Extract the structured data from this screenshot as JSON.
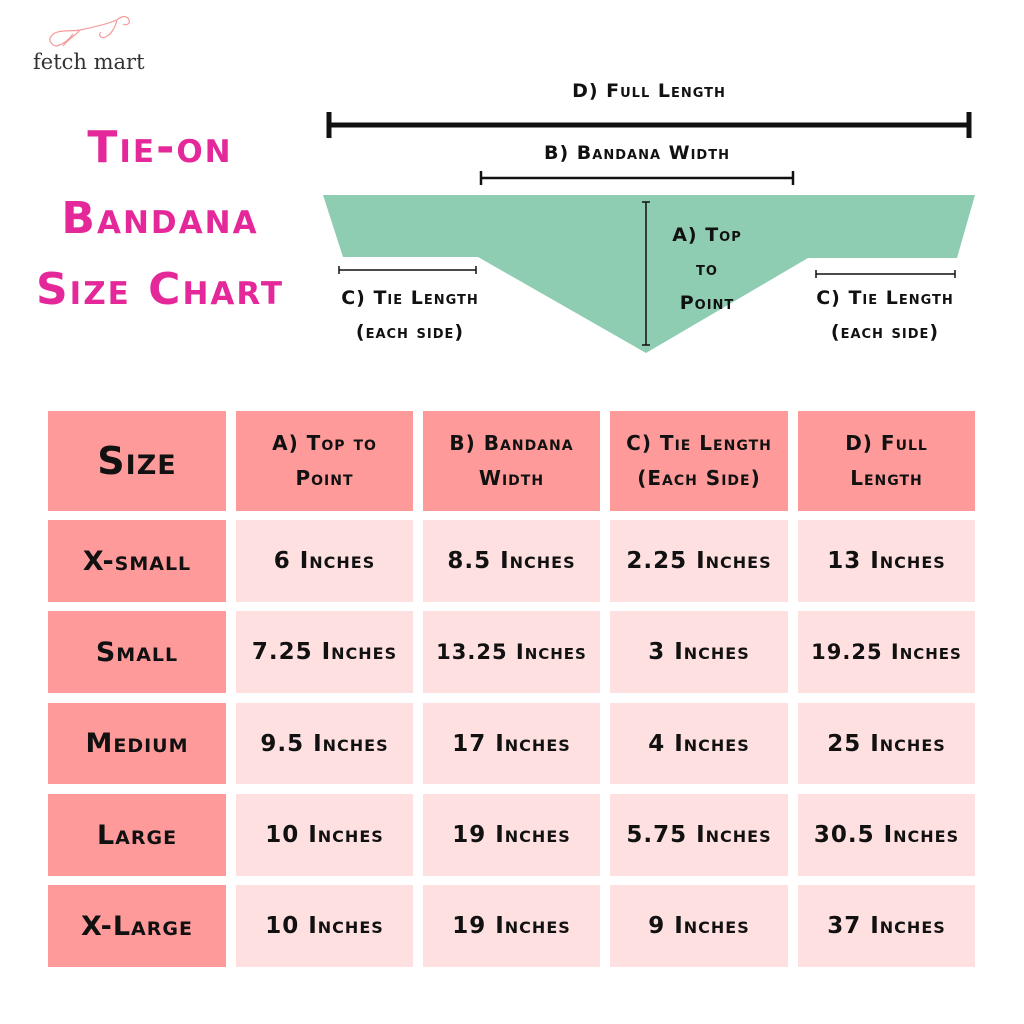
{
  "brand": {
    "name": "fetch mart",
    "logo_icon": "dog-line-drawing",
    "logo_color": "#f59a9a"
  },
  "title": [
    "Tie-on",
    "Bandana",
    "Size Chart"
  ],
  "diagram": {
    "full_length": "D) Full Length",
    "bandana_width": "B) Bandana Width",
    "top_to_point": [
      "A) Top",
      "to",
      "Point"
    ],
    "tie_left": [
      "C) Tie Length",
      "(each side)"
    ],
    "tie_right": [
      "C) Tie Length",
      "(each side)"
    ],
    "bandana_color": "#8ecdb2"
  },
  "table": {
    "headers": [
      [
        "Size"
      ],
      [
        "A) Top to",
        "Point"
      ],
      [
        "B) Bandana",
        "Width"
      ],
      [
        "C) Tie Length",
        "(Each Side)"
      ],
      [
        "D) Full",
        "Length"
      ]
    ],
    "rows": [
      [
        "X-small",
        "6 Inches",
        "8.5 Inches",
        "2.25 Inches",
        "13 Inches"
      ],
      [
        "Small",
        "7.25 Inches",
        "13.25 Inches",
        "3 Inches",
        "19.25 Inches"
      ],
      [
        "Medium",
        "9.5 Inches",
        "17 Inches",
        "4 Inches",
        "25 Inches"
      ],
      [
        "Large",
        "10 Inches",
        "19 Inches",
        "5.75 Inches",
        "30.5 Inches"
      ],
      [
        "X-Large",
        "10 Inches",
        "19 Inches",
        "9 Inches",
        "37 Inches"
      ]
    ],
    "header_color": "#fe9a9a",
    "cell_color": "#ffe0e0"
  }
}
